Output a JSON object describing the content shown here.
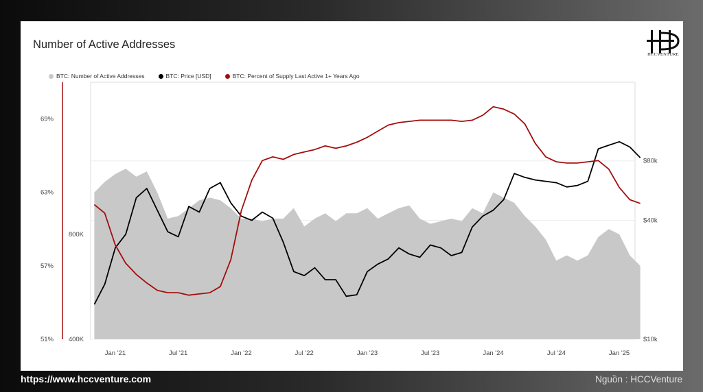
{
  "footer": {
    "website": "https://www.hccventure.com",
    "source": "Nguồn : HCCVenture"
  },
  "logo": {
    "text": "HCCVENTURE"
  },
  "chart_data": {
    "type": "line",
    "title": "Number of Active Addresses",
    "legend_placement": "top-left",
    "series": [
      {
        "name": "BTC: Number of Active Addresses",
        "type": "area",
        "color": "#c8c8c8",
        "axis": "left-inner",
        "x": [
          "2020-11",
          "2020-12",
          "2021-01",
          "2021-02",
          "2021-03",
          "2021-04",
          "2021-05",
          "2021-06",
          "2021-07",
          "2021-08",
          "2021-09",
          "2021-10",
          "2021-11",
          "2021-12",
          "2022-01",
          "2022-02",
          "2022-03",
          "2022-04",
          "2022-05",
          "2022-06",
          "2022-07",
          "2022-08",
          "2022-09",
          "2022-10",
          "2022-11",
          "2022-12",
          "2023-01",
          "2023-02",
          "2023-03",
          "2023-04",
          "2023-05",
          "2023-06",
          "2023-07",
          "2023-08",
          "2023-09",
          "2023-10",
          "2023-11",
          "2023-12",
          "2024-01",
          "2024-02",
          "2024-03",
          "2024-04",
          "2024-05",
          "2024-06",
          "2024-07",
          "2024-08",
          "2024-09",
          "2024-10",
          "2024-11",
          "2024-12",
          "2025-01",
          "2025-02",
          "2025-03"
        ],
        "values": [
          960000,
          1000000,
          1030000,
          1050000,
          1020000,
          1040000,
          960000,
          860000,
          870000,
          900000,
          930000,
          940000,
          930000,
          900000,
          860000,
          860000,
          850000,
          860000,
          860000,
          900000,
          830000,
          860000,
          880000,
          850000,
          880000,
          880000,
          900000,
          860000,
          880000,
          900000,
          910000,
          860000,
          840000,
          850000,
          860000,
          850000,
          900000,
          880000,
          960000,
          940000,
          920000,
          870000,
          830000,
          780000,
          700000,
          720000,
          700000,
          720000,
          790000,
          820000,
          800000,
          720000,
          680000
        ]
      },
      {
        "name": "BTC: Price [USD]",
        "type": "line",
        "color": "#000000",
        "axis": "right",
        "x": [
          "2020-11",
          "2020-12",
          "2021-01",
          "2021-02",
          "2021-03",
          "2021-04",
          "2021-05",
          "2021-06",
          "2021-07",
          "2021-08",
          "2021-09",
          "2021-10",
          "2021-11",
          "2021-12",
          "2022-01",
          "2022-02",
          "2022-03",
          "2022-04",
          "2022-05",
          "2022-06",
          "2022-07",
          "2022-08",
          "2022-09",
          "2022-10",
          "2022-11",
          "2022-12",
          "2023-01",
          "2023-02",
          "2023-03",
          "2023-04",
          "2023-05",
          "2023-06",
          "2023-07",
          "2023-08",
          "2023-09",
          "2023-10",
          "2023-11",
          "2023-12",
          "2024-01",
          "2024-02",
          "2024-03",
          "2024-04",
          "2024-05",
          "2024-06",
          "2024-07",
          "2024-08",
          "2024-09",
          "2024-10",
          "2024-11",
          "2024-12",
          "2025-01",
          "2025-02",
          "2025-03"
        ],
        "values": [
          15000,
          19000,
          29000,
          34000,
          52000,
          58000,
          45000,
          35000,
          33000,
          47000,
          44000,
          58000,
          62000,
          49000,
          42000,
          40000,
          44000,
          41000,
          31000,
          22000,
          21000,
          23000,
          20000,
          20000,
          16500,
          16800,
          22000,
          24000,
          25500,
          29000,
          27000,
          26000,
          30000,
          29000,
          26500,
          27500,
          37000,
          42000,
          45000,
          51000,
          69000,
          66000,
          64000,
          63000,
          62000,
          59000,
          60000,
          63000,
          92000,
          96000,
          100000,
          94000,
          83000
        ]
      },
      {
        "name": "BTC: Percent of Supply Last Active 1+ Years Ago",
        "type": "line",
        "color": "#a30d0d",
        "axis": "left-outer",
        "x": [
          "2020-11",
          "2020-12",
          "2021-01",
          "2021-02",
          "2021-03",
          "2021-04",
          "2021-05",
          "2021-06",
          "2021-07",
          "2021-08",
          "2021-09",
          "2021-10",
          "2021-11",
          "2021-12",
          "2022-01",
          "2022-02",
          "2022-03",
          "2022-04",
          "2022-05",
          "2022-06",
          "2022-07",
          "2022-08",
          "2022-09",
          "2022-10",
          "2022-11",
          "2022-12",
          "2023-01",
          "2023-02",
          "2023-03",
          "2023-04",
          "2023-05",
          "2023-06",
          "2023-07",
          "2023-08",
          "2023-09",
          "2023-10",
          "2023-11",
          "2023-12",
          "2024-01",
          "2024-02",
          "2024-03",
          "2024-04",
          "2024-05",
          "2024-06",
          "2024-07",
          "2024-08",
          "2024-09",
          "2024-10",
          "2024-11",
          "2024-12",
          "2025-01",
          "2025-02",
          "2025-03"
        ],
        "values": [
          62.0,
          61.3,
          58.7,
          57.2,
          56.3,
          55.6,
          55.0,
          54.8,
          54.8,
          54.6,
          54.7,
          54.8,
          55.3,
          57.5,
          61.5,
          64.0,
          65.6,
          65.9,
          65.7,
          66.1,
          66.3,
          66.5,
          66.8,
          66.6,
          66.8,
          67.1,
          67.5,
          68.0,
          68.5,
          68.7,
          68.8,
          68.9,
          68.9,
          68.9,
          68.9,
          68.8,
          68.9,
          69.3,
          70.0,
          69.8,
          69.4,
          68.6,
          67.0,
          65.9,
          65.5,
          65.4,
          65.4,
          65.5,
          65.6,
          64.9,
          63.4,
          62.4,
          62.1
        ]
      }
    ],
    "axes": {
      "left_outer": {
        "ticks": [
          "69%",
          "63%",
          "57%",
          "51%"
        ],
        "ylim": [
          51,
          72
        ]
      },
      "left_inner": {
        "ticks": [
          "800K",
          "400K"
        ],
        "ylim": [
          400000,
          1380000
        ]
      },
      "right": {
        "ticks": [
          "$80k",
          "$40k",
          "$10k"
        ],
        "scale": "log",
        "ylim": [
          10000,
          200000
        ]
      },
      "x": {
        "ticks": [
          "Jan '21",
          "Jul '21",
          "Jan '22",
          "Jul '22",
          "Jan '23",
          "Jul '23",
          "Jan '24",
          "Jul '24",
          "Jan '25"
        ]
      }
    },
    "grid": true
  }
}
